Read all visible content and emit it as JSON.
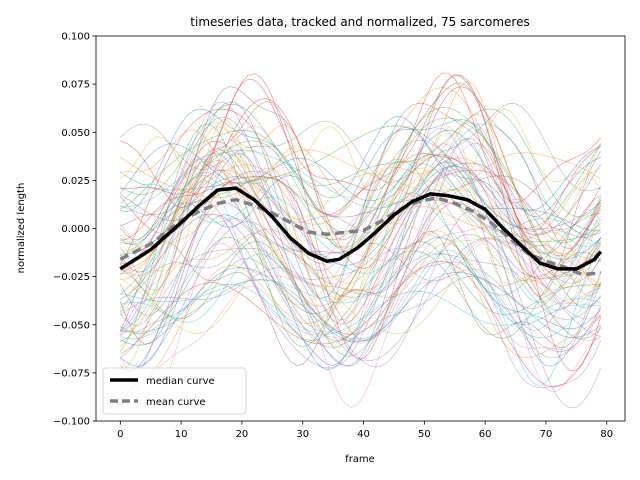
{
  "chart_data": {
    "type": "line",
    "title": "timeseries data, tracked and normalized, 75 sarcomeres",
    "xlabel": "frame",
    "ylabel": "normalized length",
    "xlim": [
      -4,
      83
    ],
    "ylim": [
      -0.1,
      0.1
    ],
    "xticks": [
      0,
      10,
      20,
      30,
      40,
      50,
      60,
      70,
      80
    ],
    "yticks": [
      -0.1,
      -0.075,
      -0.05,
      -0.025,
      0.0,
      0.025,
      0.05,
      0.075,
      0.1
    ],
    "xtick_labels": [
      "0",
      "10",
      "20",
      "30",
      "40",
      "50",
      "60",
      "70",
      "80"
    ],
    "ytick_labels": [
      "−0.100",
      "−0.075",
      "−0.050",
      "−0.025",
      "0.000",
      "0.025",
      "0.050",
      "0.075",
      "0.100"
    ],
    "grid": false,
    "legend_position": "lower-left",
    "background_traces": {
      "count": 75,
      "palette": [
        "#1f77b4",
        "#ff7f0e",
        "#2ca02c",
        "#d62728",
        "#9467bd",
        "#8c564b",
        "#e377c2",
        "#7f7f7f",
        "#bcbd22",
        "#17becf"
      ]
    },
    "series": [
      {
        "name": "median curve",
        "color": "#000000",
        "style": "solid",
        "x": [
          0,
          5,
          10,
          13,
          16,
          19,
          22,
          25,
          28,
          31,
          34,
          36,
          39,
          42,
          45,
          48,
          51,
          54,
          57,
          60,
          63,
          66,
          69,
          72,
          75,
          78,
          79
        ],
        "y": [
          -0.021,
          -0.011,
          0.003,
          0.012,
          0.02,
          0.021,
          0.015,
          0.006,
          -0.005,
          -0.013,
          -0.017,
          -0.016,
          -0.01,
          -0.002,
          0.007,
          0.014,
          0.018,
          0.017,
          0.015,
          0.01,
          0.0,
          -0.009,
          -0.018,
          -0.021,
          -0.021,
          -0.016,
          -0.012
        ]
      },
      {
        "name": "mean curve",
        "color": "#808080",
        "style": "dashed",
        "x": [
          0,
          5,
          10,
          13,
          16,
          19,
          22,
          25,
          28,
          31,
          34,
          37,
          40,
          43,
          46,
          49,
          52,
          55,
          58,
          61,
          64,
          67,
          70,
          73,
          76,
          79
        ],
        "y": [
          -0.016,
          -0.008,
          0.004,
          0.009,
          0.013,
          0.015,
          0.012,
          0.008,
          0.003,
          -0.002,
          -0.003,
          -0.002,
          -0.001,
          0.004,
          0.01,
          0.014,
          0.016,
          0.013,
          0.009,
          0.003,
          -0.005,
          -0.013,
          -0.017,
          -0.02,
          -0.024,
          -0.023
        ]
      }
    ]
  }
}
